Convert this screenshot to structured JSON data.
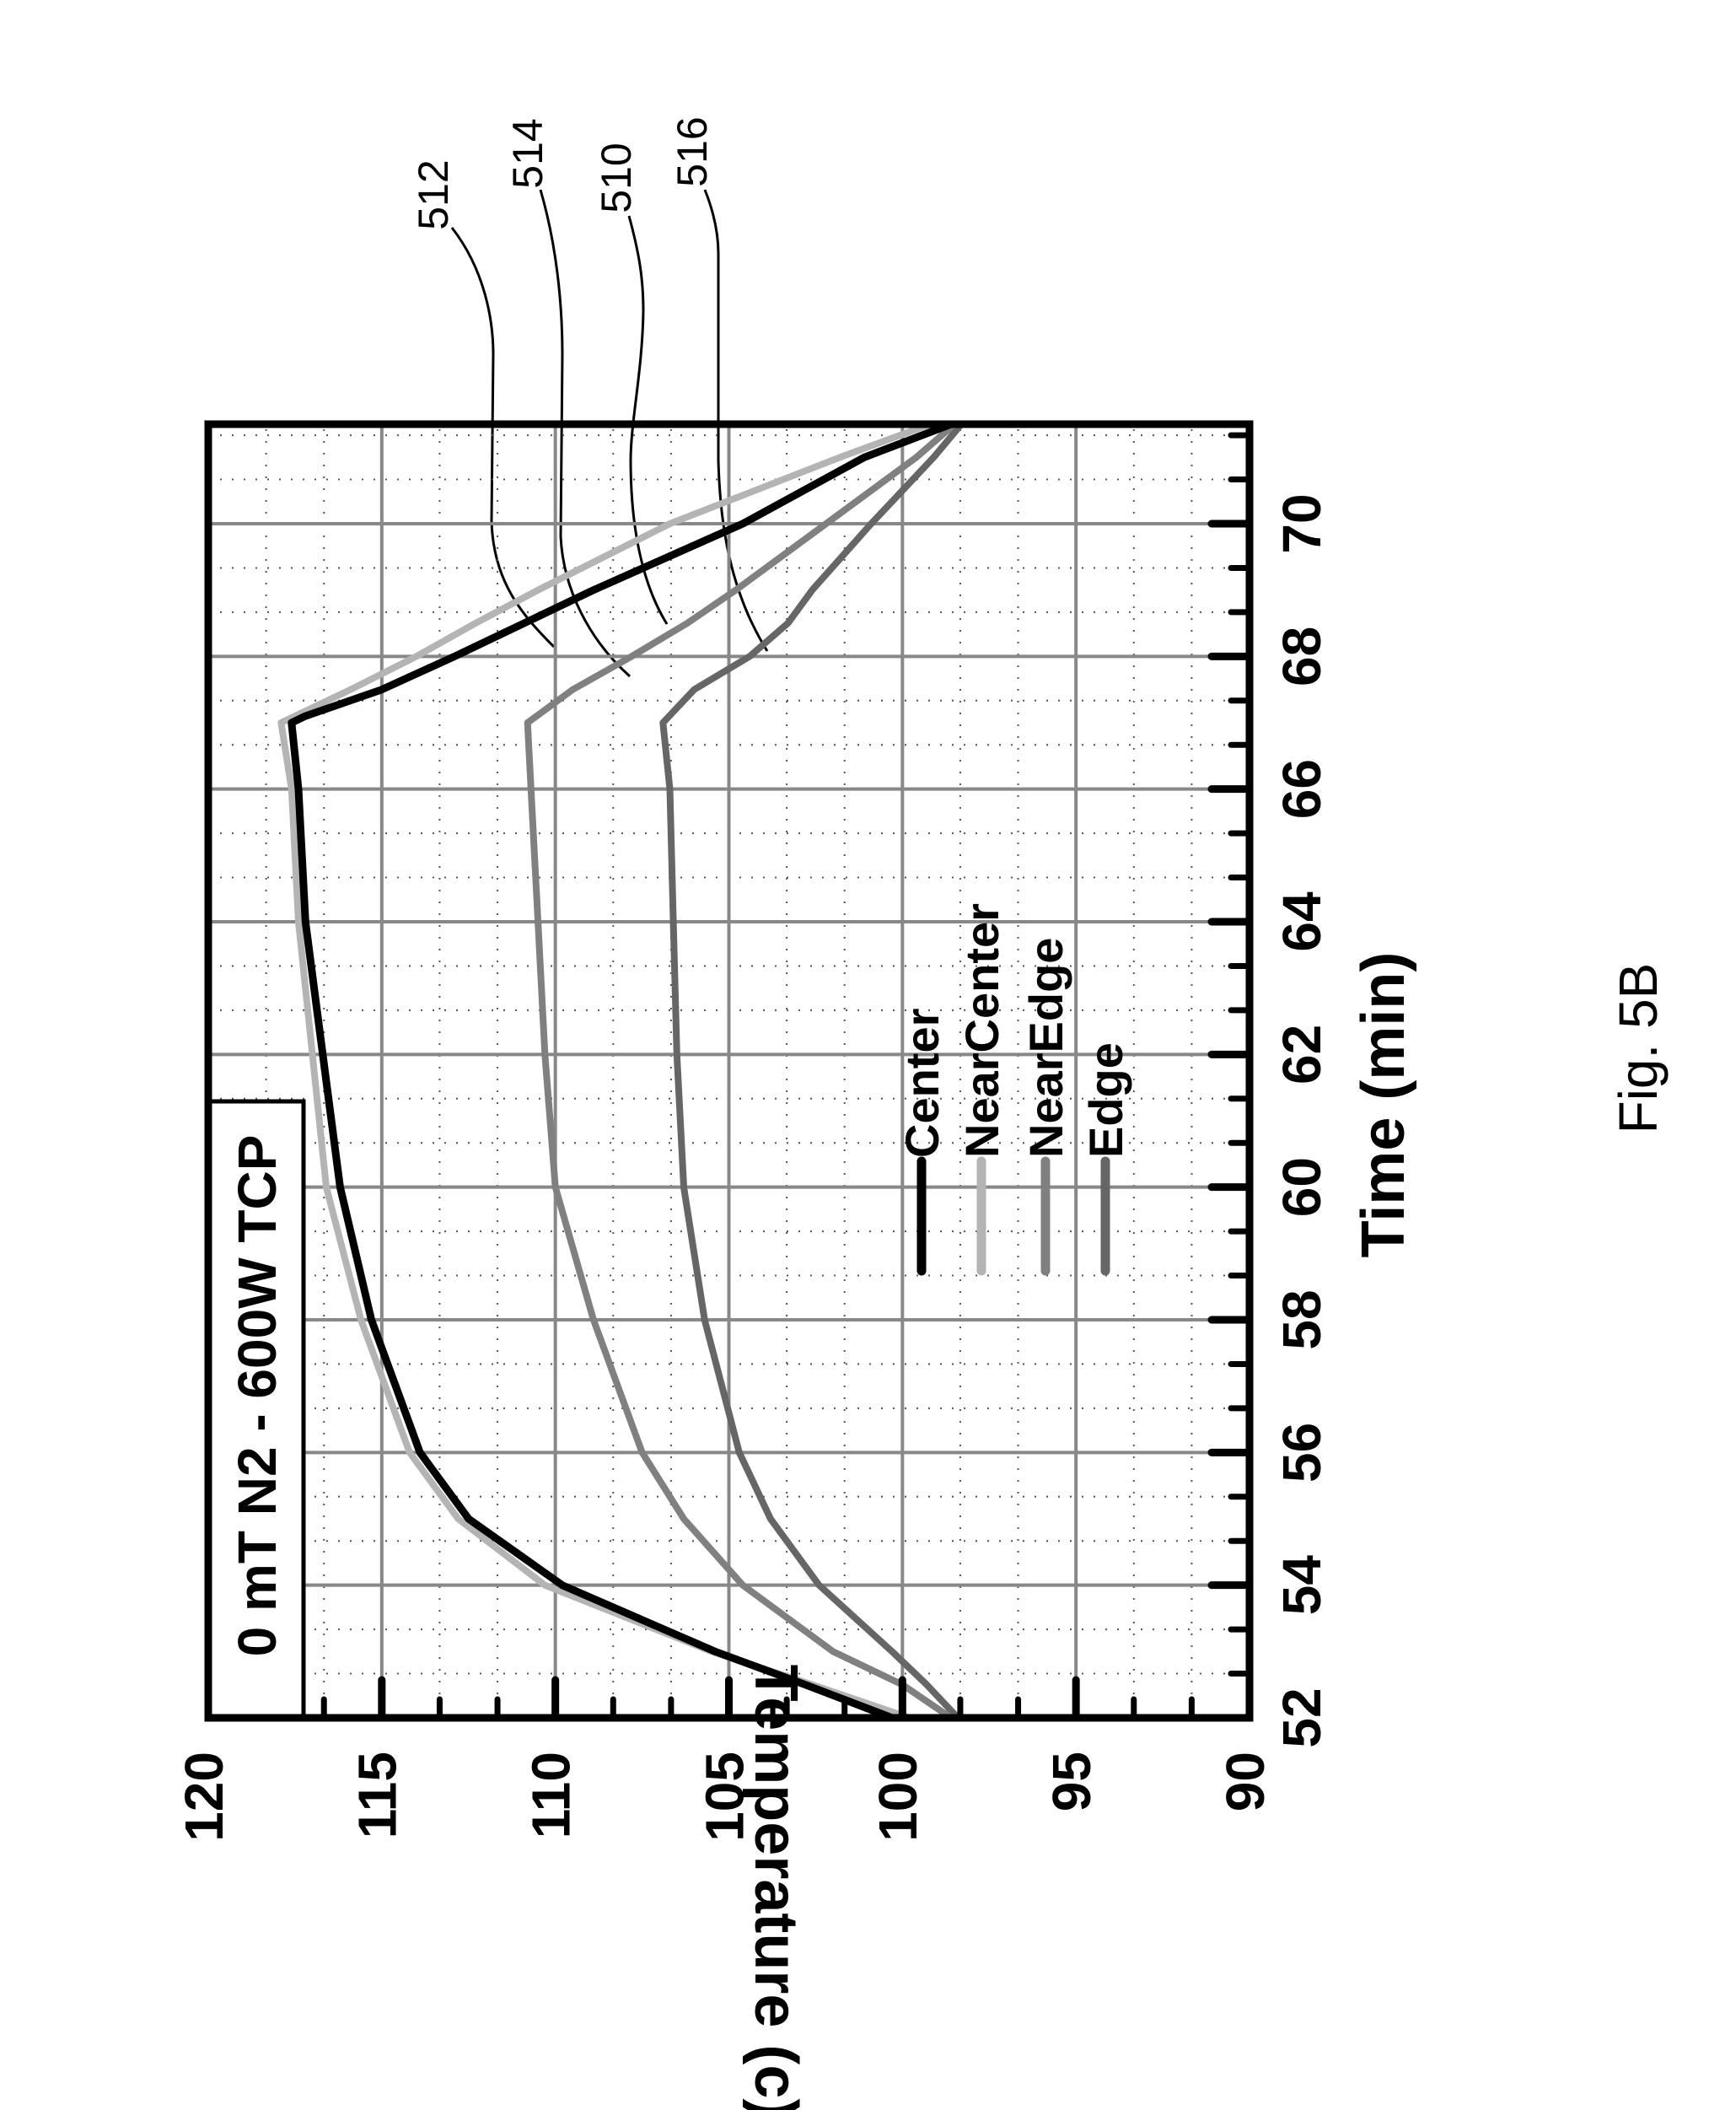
{
  "figure_label": "Fig. 5B",
  "callouts": [
    {
      "label": "512",
      "series": "NearCenter"
    },
    {
      "label": "514",
      "series": "NearEdge"
    },
    {
      "label": "510",
      "series": "Center"
    },
    {
      "label": "516",
      "series": "Edge"
    }
  ],
  "chart_data": {
    "type": "line",
    "title": "0 mT N2 - 600W TCP",
    "xlabel": "Time (min)",
    "ylabel": "Temperature (c)",
    "xlim": [
      52,
      71.5
    ],
    "ylim": [
      90,
      120
    ],
    "xticks": [
      "52",
      "54",
      "56",
      "58",
      "60",
      "62",
      "64",
      "66",
      "68",
      "70"
    ],
    "yticks": [
      "90",
      "95",
      "100",
      "105",
      "110",
      "115",
      "120"
    ],
    "grid": true,
    "legend_position": "center",
    "orientation": "rotated 90 degrees counter-clockwise",
    "series": [
      {
        "name": "Center",
        "color": "#000000",
        "x": [
          52,
          52.5,
          53,
          54,
          55,
          56,
          58,
          60,
          62,
          64,
          66,
          67,
          67.1,
          67.5,
          68,
          68.5,
          69,
          70,
          71,
          71.5
        ],
        "y": [
          100.3,
          102.8,
          105.4,
          109.8,
          112.5,
          113.9,
          115.3,
          116.2,
          116.7,
          117.2,
          117.4,
          117.6,
          117.2,
          115.0,
          112.9,
          110.9,
          108.9,
          104.6,
          101.1,
          98.6
        ]
      },
      {
        "name": "NearCenter",
        "color": "#b4b4b4",
        "x": [
          52,
          52.5,
          53,
          54,
          55,
          56,
          58,
          60,
          62,
          64,
          66,
          67,
          67.5,
          68,
          68.5,
          69,
          70,
          71,
          71.5
        ],
        "y": [
          99.8,
          102.6,
          105.5,
          110.3,
          112.8,
          114.2,
          115.6,
          116.6,
          117.0,
          117.4,
          117.6,
          117.9,
          115.9,
          114.0,
          112.3,
          110.5,
          106.7,
          101.8,
          99.2
        ]
      },
      {
        "name": "NearEdge",
        "color": "#808080",
        "x": [
          52,
          52.5,
          53,
          54,
          55,
          56,
          58,
          60,
          62,
          64,
          66,
          67,
          67.5,
          68,
          68.5,
          69,
          70,
          71,
          71.5
        ],
        "y": [
          98.6,
          100.0,
          102.0,
          104.6,
          106.3,
          107.5,
          108.9,
          110.0,
          110.3,
          110.5,
          110.7,
          110.8,
          109.5,
          107.8,
          106.2,
          104.8,
          102.2,
          99.6,
          98.5
        ]
      },
      {
        "name": "Edge",
        "color": "#666666",
        "x": [
          52,
          52.5,
          53,
          54,
          55,
          56,
          58,
          60,
          62,
          64,
          66,
          67,
          67.5,
          68,
          68.5,
          69,
          70,
          71,
          71.5
        ],
        "y": [
          98.4,
          99.3,
          100.3,
          102.4,
          103.8,
          104.7,
          105.7,
          106.3,
          106.5,
          106.6,
          106.7,
          106.9,
          106.0,
          104.4,
          103.3,
          102.6,
          100.9,
          99.1,
          98.3
        ]
      }
    ]
  }
}
